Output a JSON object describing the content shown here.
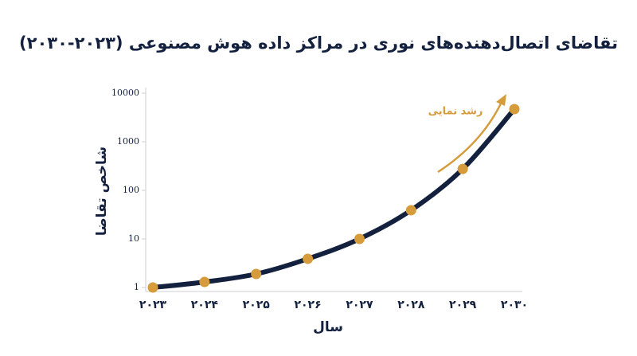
{
  "chart_data": {
    "type": "line",
    "title": "تقاضای اتصال‌دهنده‌های نوری در مراکز داده هوش مصنوعی (۲۰۲۳-۲۰۳۰)",
    "x_label": "سال",
    "y_label": "شاخص تقاضا",
    "annotation": "رشد نمایی",
    "categories": [
      "۲۰۲۳",
      "۲۰۲۴",
      "۲۰۲۵",
      "۲۰۲۶",
      "۲۰۲۷",
      "۲۰۲۸",
      "۲۰۲۹",
      "۲۰۳۰"
    ],
    "series": [
      {
        "name": "شاخص تقاضا",
        "color": "#13213f",
        "marker_color": "#d69b3a",
        "values": [
          1,
          1.3,
          1.9,
          3.9,
          10,
          39,
          276,
          4700
        ]
      }
    ],
    "yscale": "log",
    "ylim": [
      1,
      10000
    ],
    "yticks": [
      1,
      10,
      100,
      1000,
      10000
    ],
    "grid": false
  }
}
